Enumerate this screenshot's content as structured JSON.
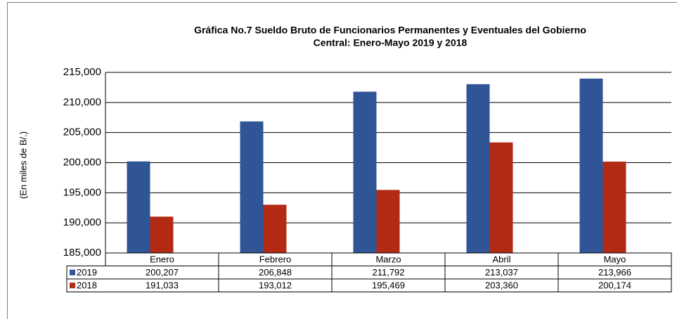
{
  "chart_data": {
    "type": "bar",
    "title": [
      "Gráfica No.7 Sueldo Bruto de Funcionarios Permanentes y Eventuales del Gobierno",
      "Central: Enero-Mayo 2019 y 2018"
    ],
    "y_label": "(En miles de B/.)",
    "categories": [
      "Enero",
      "Febrero",
      "Marzo",
      "Abril",
      "Mayo"
    ],
    "series": [
      {
        "name": "2019",
        "color": "#2f5597",
        "values": [
          200207,
          206848,
          211792,
          213037,
          213966
        ],
        "value_labels": [
          "200,207",
          "206,848",
          "211,792",
          "213,037",
          "213,966"
        ]
      },
      {
        "name": "2018",
        "color": "#b22a14",
        "values": [
          191033,
          193012,
          195469,
          203360,
          200174
        ],
        "value_labels": [
          "191,033",
          "193,012",
          "195,469",
          "203,360",
          "200,174"
        ]
      }
    ],
    "ylim": [
      185000,
      215000
    ],
    "yticks": [
      {
        "value": 185000,
        "label": "185,000"
      },
      {
        "value": 190000,
        "label": "190,000"
      },
      {
        "value": 195000,
        "label": "195,000"
      },
      {
        "value": 200000,
        "label": "200,000"
      },
      {
        "value": 205000,
        "label": "205,000"
      },
      {
        "value": 210000,
        "label": "210,000"
      },
      {
        "value": 215000,
        "label": "215,000"
      }
    ],
    "grid": true
  }
}
